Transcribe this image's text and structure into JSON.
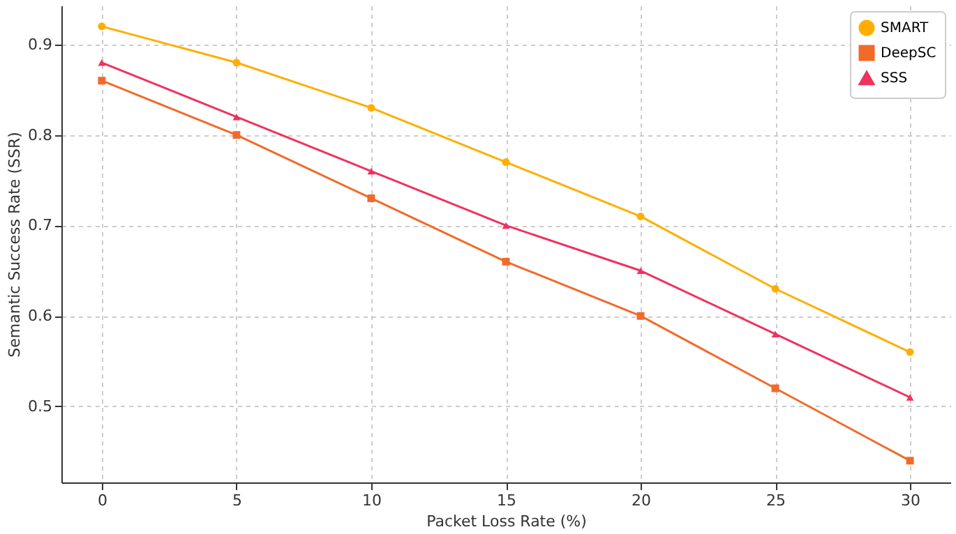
{
  "chart_data": {
    "type": "line",
    "xlabel": "Packet Loss Rate (%)",
    "ylabel": "Semantic Success Rate (SSR)",
    "x": [
      0,
      5,
      10,
      15,
      20,
      25,
      30
    ],
    "xlim": [
      -1.5,
      31.5
    ],
    "xticks": [
      0,
      5,
      10,
      15,
      20,
      25,
      30
    ],
    "ylim": [
      0.416,
      0.943
    ],
    "yticks": [
      0.5,
      0.6,
      0.7,
      0.8,
      0.9
    ],
    "grid": true,
    "legend": "top right",
    "line_style": "solid",
    "series": [
      {
        "name": "SMART",
        "color": "#ffae00",
        "marker": "circle",
        "values": [
          0.92,
          0.88,
          0.83,
          0.77,
          0.71,
          0.63,
          0.56
        ]
      },
      {
        "name": "DeepSC",
        "color": "#f26a2a",
        "marker": "square",
        "values": [
          0.86,
          0.8,
          0.73,
          0.66,
          0.6,
          0.52,
          0.44
        ]
      },
      {
        "name": "SSS",
        "color": "#f0325e",
        "marker": "triangle",
        "values": [
          0.88,
          0.82,
          0.76,
          0.7,
          0.65,
          0.58,
          0.51
        ]
      }
    ]
  }
}
